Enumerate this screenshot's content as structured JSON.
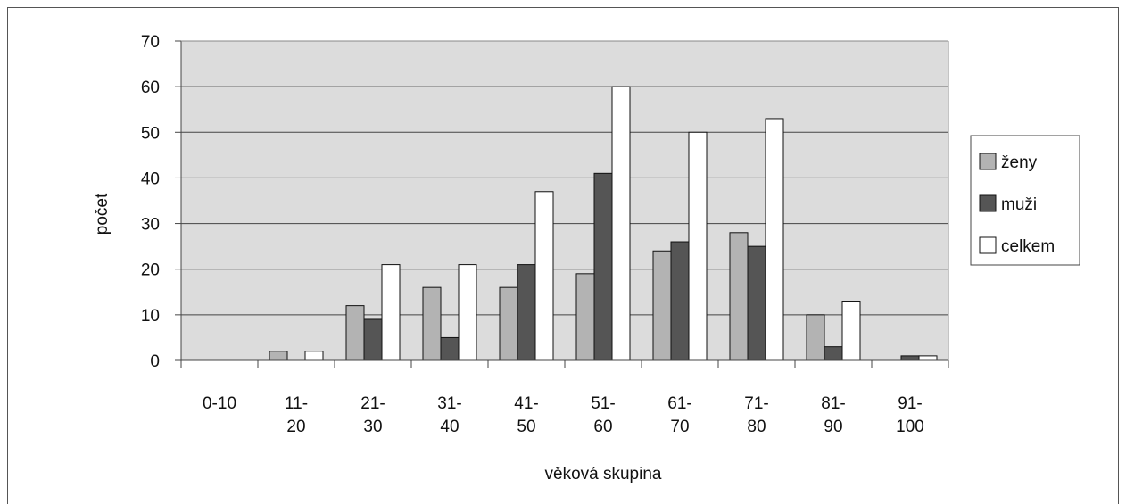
{
  "chart_data": {
    "type": "bar",
    "categories": [
      [
        "0-10"
      ],
      [
        "11-",
        "20"
      ],
      [
        "21-",
        "30"
      ],
      [
        "31-",
        "40"
      ],
      [
        "41-",
        "50"
      ],
      [
        "51-",
        "60"
      ],
      [
        "61-",
        "70"
      ],
      [
        "71-",
        "80"
      ],
      [
        "81-",
        "90"
      ],
      [
        "91-",
        "100"
      ]
    ],
    "series": [
      {
        "name": "ženy",
        "color": "#b3b3b3",
        "values": [
          0,
          2,
          12,
          16,
          16,
          19,
          24,
          28,
          10,
          0
        ]
      },
      {
        "name": "muži",
        "color": "#555555",
        "values": [
          0,
          0,
          9,
          5,
          21,
          41,
          26,
          25,
          3,
          1
        ]
      },
      {
        "name": "celkem",
        "color": "#ffffff",
        "values": [
          0,
          2,
          21,
          21,
          37,
          60,
          50,
          53,
          13,
          1
        ]
      }
    ],
    "title": "",
    "xlabel": "věková skupina",
    "ylabel": "počet",
    "ylim": [
      0,
      70
    ],
    "yticks": [
      0,
      10,
      20,
      30,
      40,
      50,
      60,
      70
    ],
    "grid": true,
    "plot_background": "#dcdcdc",
    "legend_position": "right"
  }
}
